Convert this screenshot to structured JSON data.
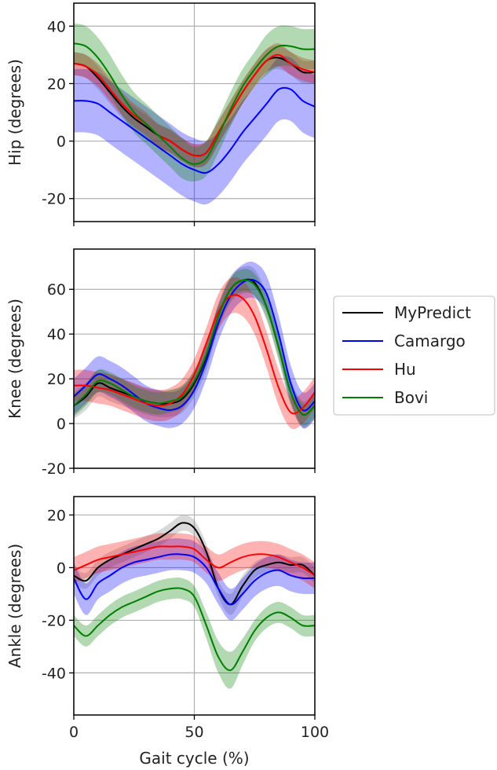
{
  "chart_data": [
    {
      "type": "line",
      "panel": "hip",
      "ylabel": "Hip (degrees)",
      "xlabel": "",
      "xlim": [
        0,
        100
      ],
      "ylim": [
        -28,
        48
      ],
      "yticks": [
        -20,
        0,
        20,
        40
      ],
      "xticks": [
        0,
        50,
        100
      ],
      "grid": true,
      "x": [
        0,
        5,
        10,
        15,
        20,
        25,
        30,
        35,
        40,
        45,
        50,
        55,
        60,
        65,
        70,
        75,
        80,
        85,
        90,
        95,
        100
      ],
      "series": [
        {
          "name": "MyPredict",
          "color": "#000000",
          "band_color": "#808080",
          "values": [
            27,
            26,
            22,
            17,
            12,
            8,
            5,
            2,
            0,
            -3,
            -5,
            -4,
            3,
            10,
            17,
            23,
            28,
            29,
            27,
            24,
            24
          ],
          "sd": [
            4,
            4,
            4,
            4,
            4,
            4,
            4,
            4,
            4,
            4,
            4,
            4,
            4,
            4,
            4,
            4,
            4,
            4,
            4,
            4,
            4
          ]
        },
        {
          "name": "Camargo",
          "color": "#0000ff",
          "band_color": "#0000ff",
          "values": [
            14,
            14,
            13,
            10,
            7,
            4,
            1,
            -2,
            -5,
            -8,
            -10,
            -11,
            -8,
            -3,
            3,
            8,
            13,
            18,
            18,
            14,
            12
          ],
          "sd": [
            11,
            11,
            11,
            11,
            11,
            11,
            11,
            11,
            11,
            11,
            11,
            11,
            11,
            11,
            11,
            11,
            11,
            11,
            11,
            11,
            11
          ]
        },
        {
          "name": "Hu",
          "color": "#ff0000",
          "band_color": "#ff0000",
          "values": [
            27,
            26,
            23,
            18,
            13,
            9,
            6,
            2,
            0,
            -3,
            -5,
            -4,
            3,
            10,
            17,
            23,
            28,
            30,
            27,
            25,
            24
          ],
          "sd": [
            4,
            4,
            4,
            4,
            4,
            4,
            4,
            4,
            4,
            4,
            4,
            4,
            4,
            4,
            4,
            4,
            4,
            4,
            4,
            4,
            4
          ]
        },
        {
          "name": "Bovi",
          "color": "#008000",
          "band_color": "#008000",
          "values": [
            34,
            33,
            29,
            23,
            16,
            10,
            6,
            2,
            -2,
            -6,
            -8,
            -6,
            2,
            11,
            19,
            25,
            30,
            33,
            33,
            32,
            32
          ],
          "sd": [
            7,
            7,
            7,
            7,
            7,
            7,
            7,
            7,
            7,
            7,
            6,
            6,
            6,
            6,
            6,
            6,
            7,
            7,
            7,
            7,
            7
          ]
        }
      ]
    },
    {
      "type": "line",
      "panel": "knee",
      "ylabel": "Knee (degrees)",
      "xlabel": "",
      "xlim": [
        0,
        100
      ],
      "ylim": [
        -20,
        78
      ],
      "yticks": [
        -20,
        0,
        20,
        40,
        60
      ],
      "xticks": [
        0,
        50,
        100
      ],
      "grid": true,
      "x": [
        0,
        5,
        10,
        15,
        20,
        25,
        30,
        35,
        40,
        45,
        50,
        55,
        60,
        65,
        70,
        75,
        80,
        85,
        90,
        95,
        100
      ],
      "series": [
        {
          "name": "MyPredict",
          "color": "#000000",
          "band_color": "#808080",
          "values": [
            8,
            12,
            18,
            16,
            14,
            12,
            10,
            9,
            9,
            11,
            18,
            30,
            48,
            60,
            64,
            63,
            52,
            34,
            14,
            4,
            8
          ],
          "sd": [
            6,
            6,
            6,
            6,
            6,
            6,
            6,
            6,
            6,
            6,
            6,
            6,
            6,
            6,
            6,
            6,
            6,
            6,
            6,
            6,
            6
          ]
        },
        {
          "name": "Camargo",
          "color": "#0000ff",
          "band_color": "#0000ff",
          "values": [
            12,
            17,
            22,
            20,
            17,
            13,
            9,
            7,
            6,
            8,
            15,
            28,
            45,
            57,
            63,
            64,
            58,
            40,
            18,
            6,
            10
          ],
          "sd": [
            8,
            8,
            8,
            8,
            8,
            8,
            8,
            8,
            8,
            8,
            8,
            8,
            8,
            8,
            8,
            8,
            8,
            8,
            8,
            8,
            8
          ]
        },
        {
          "name": "Hu",
          "color": "#ff0000",
          "band_color": "#ff0000",
          "values": [
            17,
            17,
            16,
            15,
            13,
            11,
            9,
            8,
            9,
            13,
            22,
            36,
            50,
            57,
            56,
            48,
            33,
            16,
            5,
            7,
            14
          ],
          "sd": [
            7,
            7,
            7,
            7,
            7,
            7,
            7,
            7,
            7,
            7,
            7,
            7,
            8,
            8,
            8,
            8,
            8,
            8,
            7,
            7,
            7
          ]
        },
        {
          "name": "Bovi",
          "color": "#008000",
          "band_color": "#008000",
          "values": [
            8,
            13,
            19,
            18,
            15,
            12,
            10,
            9,
            10,
            12,
            19,
            31,
            48,
            60,
            64,
            62,
            52,
            34,
            14,
            4,
            8
          ],
          "sd": [
            5,
            5,
            5,
            5,
            5,
            5,
            5,
            5,
            5,
            5,
            5,
            5,
            5,
            5,
            5,
            5,
            5,
            5,
            5,
            5,
            5
          ]
        }
      ]
    },
    {
      "type": "line",
      "panel": "ankle",
      "ylabel": "Ankle (degrees)",
      "xlabel": "Gait cycle (%)",
      "xlim": [
        0,
        100
      ],
      "ylim": [
        -56,
        27
      ],
      "yticks": [
        -40,
        -20,
        0,
        20
      ],
      "xticks": [
        0,
        50,
        100
      ],
      "grid": true,
      "x": [
        0,
        5,
        10,
        15,
        20,
        25,
        30,
        35,
        40,
        45,
        50,
        55,
        60,
        65,
        70,
        75,
        80,
        85,
        90,
        95,
        100
      ],
      "series": [
        {
          "name": "MyPredict",
          "color": "#000000",
          "band_color": "#808080",
          "values": [
            -3,
            -5,
            0,
            3,
            5,
            7,
            9,
            11,
            14,
            17,
            15,
            6,
            -8,
            -14,
            -7,
            -1,
            1,
            2,
            1,
            1,
            -3
          ],
          "sd": [
            3,
            3,
            3,
            3,
            3,
            3,
            3,
            3,
            3,
            3,
            3,
            3,
            3,
            4,
            4,
            3,
            3,
            3,
            3,
            3,
            3
          ]
        },
        {
          "name": "Camargo",
          "color": "#0000ff",
          "band_color": "#0000ff",
          "values": [
            -4,
            -12,
            -6,
            -3,
            0,
            2,
            3,
            4,
            5,
            5,
            4,
            0,
            -8,
            -14,
            -10,
            -5,
            -2,
            -1,
            -3,
            -4,
            -4
          ],
          "sd": [
            6,
            6,
            6,
            6,
            6,
            6,
            6,
            6,
            6,
            6,
            6,
            6,
            6,
            6,
            6,
            6,
            6,
            6,
            6,
            6,
            6
          ]
        },
        {
          "name": "Hu",
          "color": "#ff0000",
          "band_color": "#ff0000",
          "values": [
            -1,
            1,
            3,
            4,
            5,
            6,
            7,
            8,
            8,
            8,
            7,
            3,
            0,
            2,
            4,
            5,
            5,
            4,
            2,
            0,
            -3
          ],
          "sd": [
            5,
            5,
            5,
            5,
            5,
            5,
            5,
            5,
            5,
            5,
            5,
            5,
            5,
            5,
            5,
            5,
            5,
            5,
            5,
            5,
            5
          ]
        },
        {
          "name": "Bovi",
          "color": "#008000",
          "band_color": "#008000",
          "values": [
            -22,
            -26,
            -22,
            -18,
            -15,
            -13,
            -11,
            -9,
            -8,
            -8,
            -11,
            -22,
            -34,
            -39,
            -32,
            -24,
            -19,
            -17,
            -19,
            -22,
            -22
          ],
          "sd": [
            4,
            4,
            4,
            4,
            4,
            4,
            4,
            4,
            4,
            4,
            4,
            5,
            6,
            7,
            5,
            4,
            4,
            4,
            4,
            4,
            4
          ]
        }
      ]
    }
  ],
  "legend": {
    "placement": "right",
    "entries": [
      {
        "label": "MyPredict",
        "color": "#000000"
      },
      {
        "label": "Camargo",
        "color": "#0000ff"
      },
      {
        "label": "Hu",
        "color": "#ff0000"
      },
      {
        "label": "Bovi",
        "color": "#008000"
      }
    ]
  }
}
